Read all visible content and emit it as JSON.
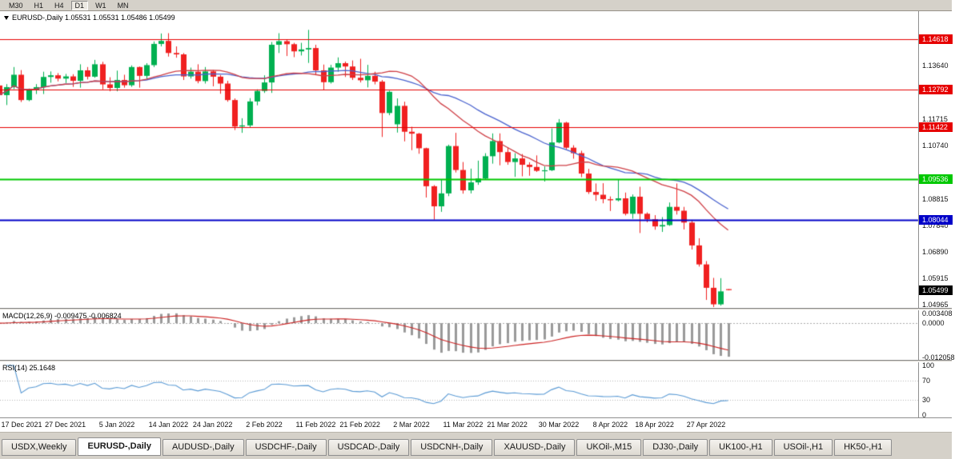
{
  "toolbar": {
    "timeframes": [
      {
        "label": "M30",
        "active": false
      },
      {
        "label": "H1",
        "active": false
      },
      {
        "label": "H4",
        "active": false
      },
      {
        "label": "D1",
        "active": true
      },
      {
        "label": "W1",
        "active": false
      },
      {
        "label": "MN",
        "active": false
      }
    ]
  },
  "chart": {
    "title": "EURUSD-,Daily 1.05531 1.05531 1.05486 1.05499"
  },
  "indicators": {
    "macd": {
      "label": "MACD(12,26,9) -0.009475 -0.006824",
      "axis_labels": [
        {
          "text": "0.003408",
          "value": 0.003408
        },
        {
          "text": "0.0000",
          "value": 0
        },
        {
          "text": "-0.012058",
          "value": -0.012058
        }
      ]
    },
    "rsi": {
      "label": "RSI(14) 25.1648",
      "axis_labels": [
        {
          "text": "100",
          "value": 100
        },
        {
          "text": "70",
          "value": 70
        },
        {
          "text": "30",
          "value": 30
        },
        {
          "text": "0",
          "value": 0
        }
      ]
    }
  },
  "price_axis": {
    "labels": [
      {
        "text": "1.13640",
        "price": 1.1364
      },
      {
        "text": "1.11715",
        "price": 1.11715
      },
      {
        "text": "1.10740",
        "price": 1.1074
      },
      {
        "text": "1.08815",
        "price": 1.08815
      },
      {
        "text": "1.07840",
        "price": 1.0784
      },
      {
        "text": "1.06890",
        "price": 1.0689
      },
      {
        "text": "1.05915",
        "price": 1.05915
      },
      {
        "text": "1.04965",
        "price": 1.04965
      }
    ]
  },
  "time_axis": {
    "labels": [
      {
        "text": "17 Dec 2021",
        "index": 3
      },
      {
        "text": "27 Dec 2021",
        "index": 9
      },
      {
        "text": "5 Jan 2022",
        "index": 16
      },
      {
        "text": "14 Jan 2022",
        "index": 23
      },
      {
        "text": "24 Jan 2022",
        "index": 29
      },
      {
        "text": "2 Feb 2022",
        "index": 36
      },
      {
        "text": "11 Feb 2022",
        "index": 43
      },
      {
        "text": "21 Feb 2022",
        "index": 49
      },
      {
        "text": "2 Mar 2022",
        "index": 56
      },
      {
        "text": "11 Mar 2022",
        "index": 63
      },
      {
        "text": "21 Mar 2022",
        "index": 69
      },
      {
        "text": "30 Mar 2022",
        "index": 76
      },
      {
        "text": "8 Apr 2022",
        "index": 83
      },
      {
        "text": "18 Apr 2022",
        "index": 89
      },
      {
        "text": "27 Apr 2022",
        "index": 96
      }
    ]
  },
  "tabs": [
    {
      "label": "USDX,Weekly",
      "active": false
    },
    {
      "label": "EURUSD-,Daily",
      "active": true
    },
    {
      "label": "AUDUSD-,Daily",
      "active": false
    },
    {
      "label": "USDCHF-,Daily",
      "active": false
    },
    {
      "label": "USDCAD-,Daily",
      "active": false
    },
    {
      "label": "USDCNH-,Daily",
      "active": false
    },
    {
      "label": "XAUUSD-,Daily",
      "active": false
    },
    {
      "label": "UKOil-,M15",
      "active": false
    },
    {
      "label": "DJ30-,Daily",
      "active": false
    },
    {
      "label": "UK100-,H1",
      "active": false
    },
    {
      "label": "USOil-,H1",
      "active": false
    },
    {
      "label": "HK50-,H1",
      "active": false
    }
  ],
  "chart_data": {
    "type": "candlestick",
    "symbol": "EURUSD-",
    "timeframe": "Daily",
    "ohlc_current": {
      "open": 1.05531,
      "high": 1.05531,
      "low": 1.05486,
      "close": 1.05499
    },
    "price_range": [
      1.0488,
      1.156
    ],
    "horizontal_levels": [
      {
        "price": 1.14618,
        "label": "1.14618",
        "color": "#e60000",
        "width": 1.2
      },
      {
        "price": 1.12792,
        "label": "1.12792",
        "color": "#e60000",
        "width": 1.2
      },
      {
        "price": 1.11422,
        "label": "1.11422",
        "color": "#e60000",
        "width": 1.2
      },
      {
        "price": 1.09536,
        "label": "1.09536",
        "color": "#00c800",
        "width": 1.8
      },
      {
        "price": 1.08044,
        "label": "1.08044",
        "color": "#0000c8",
        "width": 1.8
      }
    ],
    "current_price": {
      "value": 1.05499,
      "label": "1.05499",
      "color": "#000000"
    },
    "moving_averages": [
      {
        "period": 20,
        "color": "#cf3f46"
      },
      {
        "period": 28,
        "color": "#4a63cf"
      }
    ],
    "macd": {
      "params": [
        12,
        26,
        9
      ],
      "main": -0.009475,
      "signal": -0.006824,
      "range": [
        -0.012058,
        0.003408
      ]
    },
    "rsi": {
      "period": 14,
      "value": 25.1648,
      "range": [
        0,
        100
      ],
      "levels": [
        70,
        30
      ]
    },
    "colors": {
      "bull": "#00b050",
      "bear": "#f02020",
      "macd_hist": "#9a9a9a",
      "macd_signal": "#cc2222",
      "rsi_line": "#5b9bd5"
    },
    "candles": [
      [
        1.1293,
        1.1319,
        1.1254,
        1.1258
      ],
      [
        1.1258,
        1.1298,
        1.1222,
        1.1287
      ],
      [
        1.1287,
        1.136,
        1.128,
        1.1332
      ],
      [
        1.1332,
        1.1349,
        1.1233,
        1.124
      ],
      [
        1.124,
        1.1282,
        1.1236,
        1.1276
      ],
      [
        1.1276,
        1.1298,
        1.1262,
        1.1287
      ],
      [
        1.1287,
        1.1343,
        1.1262,
        1.1324
      ],
      [
        1.1324,
        1.1344,
        1.1303,
        1.133
      ],
      [
        1.133,
        1.1338,
        1.1308,
        1.1318
      ],
      [
        1.1318,
        1.1335,
        1.1302,
        1.1326
      ],
      [
        1.1326,
        1.1334,
        1.1288,
        1.131
      ],
      [
        1.131,
        1.137,
        1.1285,
        1.1348
      ],
      [
        1.1348,
        1.136,
        1.1315,
        1.1325
      ],
      [
        1.1325,
        1.1386,
        1.1321,
        1.137
      ],
      [
        1.137,
        1.1379,
        1.1279,
        1.1297
      ],
      [
        1.1297,
        1.1323,
        1.1272,
        1.1284
      ],
      [
        1.1284,
        1.1347,
        1.1272,
        1.1313
      ],
      [
        1.1313,
        1.1332,
        1.1285,
        1.1294
      ],
      [
        1.1294,
        1.1366,
        1.1288,
        1.136
      ],
      [
        1.136,
        1.1362,
        1.1285,
        1.1328
      ],
      [
        1.1328,
        1.1374,
        1.1313,
        1.1367
      ],
      [
        1.1367,
        1.1453,
        1.136,
        1.1444
      ],
      [
        1.1444,
        1.1482,
        1.1435,
        1.1455
      ],
      [
        1.1455,
        1.1483,
        1.1398,
        1.1411
      ],
      [
        1.1411,
        1.1435,
        1.1394,
        1.1406
      ],
      [
        1.1406,
        1.1411,
        1.1313,
        1.1326
      ],
      [
        1.1326,
        1.1358,
        1.1318,
        1.1343
      ],
      [
        1.1343,
        1.137,
        1.1301,
        1.1309
      ],
      [
        1.1309,
        1.136,
        1.13,
        1.1344
      ],
      [
        1.1344,
        1.1349,
        1.129,
        1.1325
      ],
      [
        1.1325,
        1.1331,
        1.1263,
        1.13
      ],
      [
        1.13,
        1.131,
        1.1234,
        1.124
      ],
      [
        1.124,
        1.1246,
        1.1131,
        1.1144
      ],
      [
        1.1144,
        1.1174,
        1.1121,
        1.1148
      ],
      [
        1.1148,
        1.1247,
        1.114,
        1.1235
      ],
      [
        1.1235,
        1.1279,
        1.1221,
        1.1273
      ],
      [
        1.1273,
        1.133,
        1.1266,
        1.1304
      ],
      [
        1.1304,
        1.1451,
        1.1266,
        1.1441
      ],
      [
        1.1441,
        1.1483,
        1.1411,
        1.1454
      ],
      [
        1.1454,
        1.1461,
        1.14,
        1.1443
      ],
      [
        1.1443,
        1.1448,
        1.1396,
        1.1417
      ],
      [
        1.1417,
        1.1448,
        1.1402,
        1.1424
      ],
      [
        1.1424,
        1.1495,
        1.1375,
        1.1429
      ],
      [
        1.1429,
        1.1441,
        1.133,
        1.1348
      ],
      [
        1.1348,
        1.1369,
        1.1278,
        1.1305
      ],
      [
        1.1305,
        1.1368,
        1.13,
        1.1358
      ],
      [
        1.1358,
        1.1395,
        1.1343,
        1.1374
      ],
      [
        1.1374,
        1.138,
        1.1324,
        1.1362
      ],
      [
        1.1362,
        1.1384,
        1.1313,
        1.1321
      ],
      [
        1.1321,
        1.139,
        1.1304,
        1.1312
      ],
      [
        1.1312,
        1.1368,
        1.1286,
        1.1328
      ],
      [
        1.1328,
        1.1343,
        1.1297,
        1.1307
      ],
      [
        1.1307,
        1.1313,
        1.1106,
        1.1193
      ],
      [
        1.1193,
        1.1274,
        1.1185,
        1.127
      ],
      [
        1.1152,
        1.1246,
        1.1122,
        1.1219
      ],
      [
        1.1219,
        1.1234,
        1.109,
        1.1125
      ],
      [
        1.1125,
        1.1143,
        1.1058,
        1.1118
      ],
      [
        1.1118,
        1.1121,
        1.1045,
        1.1065
      ],
      [
        1.1065,
        1.1067,
        1.0886,
        1.0927
      ],
      [
        1.0927,
        1.0931,
        1.0806,
        1.0854
      ],
      [
        1.0854,
        1.095,
        1.0834,
        1.0901
      ],
      [
        1.0901,
        1.1078,
        1.0891,
        1.1073
      ],
      [
        1.1073,
        1.1121,
        1.0977,
        1.0986
      ],
      [
        1.0986,
        1.1015,
        1.09,
        1.0912
      ],
      [
        1.0912,
        1.0991,
        1.0901,
        1.0941
      ],
      [
        1.0941,
        1.102,
        1.0932,
        1.0955
      ],
      [
        1.0955,
        1.1047,
        1.095,
        1.1036
      ],
      [
        1.1036,
        1.1119,
        1.1009,
        1.1091
      ],
      [
        1.1091,
        1.1119,
        1.1003,
        1.1051
      ],
      [
        1.1051,
        1.1069,
        1.1005,
        1.1015
      ],
      [
        1.1015,
        1.1047,
        1.0961,
        1.1028
      ],
      [
        1.1028,
        1.1044,
        1.0963,
        1.1005
      ],
      [
        1.1005,
        1.1014,
        1.0965,
        1.0997
      ],
      [
        1.0997,
        1.1039,
        1.0979,
        1.0983
      ],
      [
        1.0983,
        1.0999,
        1.0944,
        1.0985
      ],
      [
        1.0985,
        1.1137,
        1.0982,
        1.1086
      ],
      [
        1.1086,
        1.1171,
        1.1083,
        1.1158
      ],
      [
        1.1158,
        1.1161,
        1.1061,
        1.1067
      ],
      [
        1.1067,
        1.1076,
        1.1027,
        1.1047
      ],
      [
        1.1047,
        1.1056,
        1.096,
        1.0973
      ],
      [
        1.0973,
        1.099,
        1.0899,
        1.0906
      ],
      [
        1.0906,
        1.0937,
        1.0874,
        1.0896
      ],
      [
        1.0896,
        1.0938,
        1.0865,
        1.088
      ],
      [
        1.088,
        1.089,
        1.0837,
        1.0876
      ],
      [
        1.0876,
        1.095,
        1.0872,
        1.0883
      ],
      [
        1.0883,
        1.0904,
        1.0821,
        1.0827
      ],
      [
        1.0827,
        1.0897,
        1.0809,
        1.0889
      ],
      [
        1.0889,
        1.0925,
        1.0757,
        1.0827
      ],
      [
        1.0827,
        1.0832,
        1.0796,
        1.0807
      ],
      [
        1.0807,
        1.0822,
        1.0769,
        1.0781
      ],
      [
        1.0781,
        1.0815,
        1.0761,
        1.0786
      ],
      [
        1.0786,
        1.0868,
        1.0783,
        1.0852
      ],
      [
        1.0852,
        1.0937,
        1.0824,
        1.0838
      ],
      [
        1.0838,
        1.0852,
        1.077,
        1.0795
      ],
      [
        1.0795,
        1.0805,
        1.0697,
        1.0712
      ],
      [
        1.0712,
        1.0738,
        1.0635,
        1.0643
      ],
      [
        1.0643,
        1.0655,
        1.0514,
        1.0558
      ],
      [
        1.0558,
        1.0594,
        1.0471,
        1.0498
      ],
      [
        1.0498,
        1.0593,
        1.0493,
        1.0545
      ],
      [
        1.05531,
        1.05531,
        1.05486,
        1.05499
      ]
    ]
  }
}
